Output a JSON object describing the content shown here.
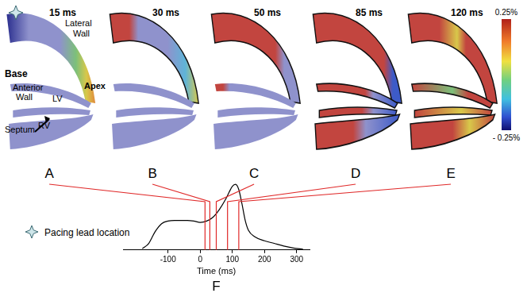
{
  "panels": [
    {
      "letter": "A",
      "time_label": "15 ms",
      "time_ms": 15
    },
    {
      "letter": "B",
      "time_label": "30 ms",
      "time_ms": 30
    },
    {
      "letter": "C",
      "time_label": "50 ms",
      "time_ms": 50
    },
    {
      "letter": "D",
      "time_label": "85 ms",
      "time_ms": 85
    },
    {
      "letter": "E",
      "time_label": "120 ms",
      "time_ms": 120
    }
  ],
  "anatomy_labels": {
    "base": "Base",
    "lateral_wall": "Lateral Wall",
    "anterior_wall": "Anterior Wall",
    "lv": "LV",
    "apex": "Apex",
    "septum": "Septum",
    "rv": "RV"
  },
  "colorbar": {
    "ticks": [
      {
        "value": 0.25,
        "label": "0.25%"
      },
      {
        "value": -0.25,
        "label": "- 0.25%"
      }
    ]
  },
  "legend": {
    "pacing_lead": "Pacing lead location"
  },
  "chart_data": {
    "type": "line",
    "panel_label": "F",
    "xlabel": "Time (ms)",
    "x": [
      -180,
      -160,
      -140,
      -120,
      -100,
      -80,
      -60,
      -40,
      -20,
      0,
      20,
      40,
      60,
      80,
      90,
      100,
      110,
      120,
      130,
      140,
      150,
      170,
      200,
      230,
      260,
      290,
      320
    ],
    "values": [
      0.02,
      0.1,
      0.28,
      0.4,
      0.44,
      0.45,
      0.45,
      0.45,
      0.44,
      0.42,
      0.44,
      0.5,
      0.62,
      0.78,
      0.88,
      0.97,
      1.0,
      0.92,
      0.7,
      0.45,
      0.3,
      0.2,
      0.14,
      0.1,
      0.06,
      0.03,
      0.01
    ],
    "color": "#000000",
    "xlim": [
      -240,
      340
    ],
    "xticks": [
      -100,
      0,
      100,
      200,
      300
    ],
    "ylim": [
      0,
      1.05
    ],
    "tick_labels": "x"
  }
}
